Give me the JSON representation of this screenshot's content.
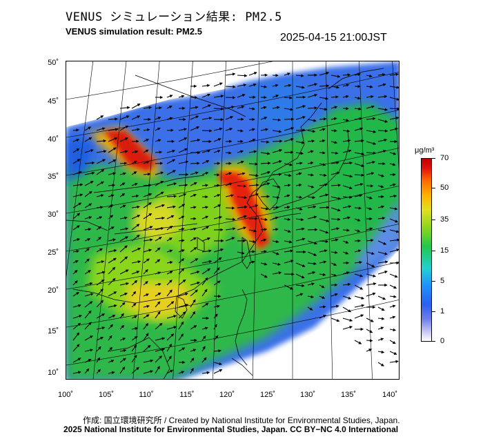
{
  "title_jp": "VENUS シミュレーション結果: PM2.5",
  "title_en": "VENUS simulation result: PM2.5",
  "timestamp": "2025-04-15 21:00JST",
  "map": {
    "lat_labels": [
      "50˚",
      "45˚",
      "40˚",
      "35˚",
      "30˚",
      "25˚",
      "20˚",
      "15˚",
      "10˚"
    ],
    "lon_labels": [
      "100˚",
      "105˚",
      "110˚",
      "115˚",
      "120˚",
      "125˚",
      "130˚",
      "135˚",
      "140˚"
    ]
  },
  "colorbar": {
    "unit": "μg/m³",
    "labels": [
      "70",
      "50",
      "35",
      "15",
      "5",
      "1",
      "0"
    ]
  },
  "credits": {
    "line1": "作成: 国立環境研究所 / Created by National Institute for Environmental Studies, Japan.",
    "line2": "2025 National Institute for Environmental Studies, Japan. CC BY−NC 4.0 International"
  }
}
